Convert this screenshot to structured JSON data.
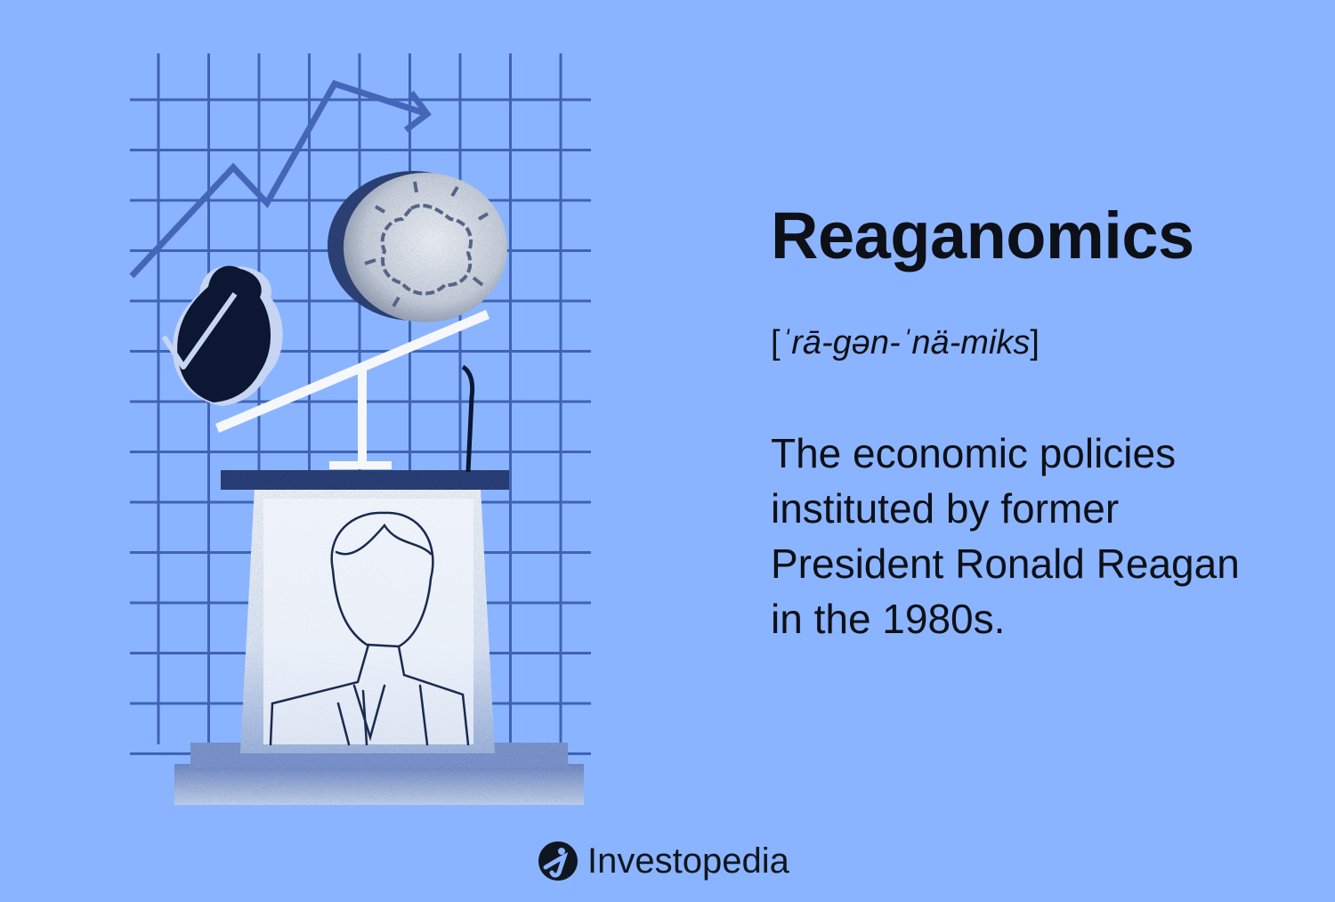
{
  "header": {
    "title": "Reaganomics",
    "pronunciation_open": "[",
    "pronunciation_text": "ˈrā-gən-ˈnä-miks",
    "pronunciation_close": "]"
  },
  "definition": {
    "lines": [
      "The economic policies",
      "instituted by former",
      "President Ronald Reagan",
      "in the 1980s."
    ]
  },
  "brand": {
    "name": "Investopedia",
    "logo_icon": "investopedia-i-icon"
  },
  "colors": {
    "background": "#8ab4ff",
    "grid": "#3f63b5",
    "arrow": "#4566b8",
    "dark": "#0b1733",
    "text": "#0d1017"
  }
}
